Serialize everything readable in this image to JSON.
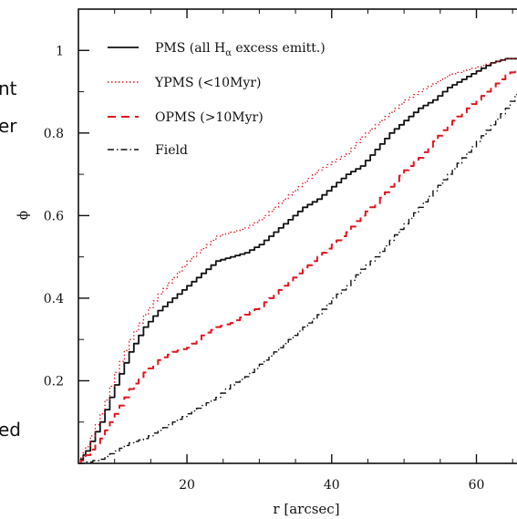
{
  "chart_data": {
    "type": "line",
    "xlabel": "r [arcsec]",
    "ylabel": "ϕ",
    "xlim": [
      5,
      68
    ],
    "ylim": [
      0,
      1.1
    ],
    "x_ticks": [
      20,
      40,
      60
    ],
    "y_ticks": [
      0.2,
      0.4,
      0.6,
      0.8,
      1
    ],
    "x_tick_labels": [
      "20",
      "40",
      "60"
    ],
    "y_tick_labels": [
      "0.2",
      "0.4",
      "0.6",
      "0.8",
      "1"
    ],
    "legend_position": "top-left",
    "grid": false,
    "series": [
      {
        "name": "PMS (all Hα excess emitt.)",
        "legend_label_main": "PMS (all H",
        "legend_label_sub": "α",
        "legend_label_rest": " excess emitt.)",
        "color": "#111111",
        "style": "solid",
        "points": [
          [
            5,
            0
          ],
          [
            6,
            0.03
          ],
          [
            8,
            0.1
          ],
          [
            10,
            0.19
          ],
          [
            12,
            0.27
          ],
          [
            14,
            0.33
          ],
          [
            16,
            0.37
          ],
          [
            18,
            0.4
          ],
          [
            20,
            0.43
          ],
          [
            22,
            0.46
          ],
          [
            24,
            0.49
          ],
          [
            26,
            0.5
          ],
          [
            28,
            0.51
          ],
          [
            30,
            0.53
          ],
          [
            32,
            0.56
          ],
          [
            34,
            0.59
          ],
          [
            36,
            0.62
          ],
          [
            38,
            0.64
          ],
          [
            40,
            0.67
          ],
          [
            42,
            0.7
          ],
          [
            44,
            0.72
          ],
          [
            46,
            0.76
          ],
          [
            48,
            0.8
          ],
          [
            50,
            0.83
          ],
          [
            52,
            0.86
          ],
          [
            54,
            0.88
          ],
          [
            56,
            0.91
          ],
          [
            58,
            0.93
          ],
          [
            60,
            0.95
          ],
          [
            62,
            0.97
          ],
          [
            64,
            0.98
          ],
          [
            66,
            0.98
          ],
          [
            68,
            0.98
          ]
        ]
      },
      {
        "name": "YPMS (<10Myr)",
        "color": "#e0141e",
        "style": "dotted",
        "points": [
          [
            5,
            0
          ],
          [
            6,
            0.04
          ],
          [
            8,
            0.12
          ],
          [
            10,
            0.22
          ],
          [
            12,
            0.3
          ],
          [
            14,
            0.36
          ],
          [
            16,
            0.41
          ],
          [
            18,
            0.45
          ],
          [
            20,
            0.49
          ],
          [
            22,
            0.52
          ],
          [
            24,
            0.55
          ],
          [
            26,
            0.56
          ],
          [
            28,
            0.57
          ],
          [
            30,
            0.59
          ],
          [
            32,
            0.62
          ],
          [
            34,
            0.65
          ],
          [
            36,
            0.68
          ],
          [
            38,
            0.71
          ],
          [
            40,
            0.73
          ],
          [
            42,
            0.75
          ],
          [
            44,
            0.79
          ],
          [
            46,
            0.82
          ],
          [
            48,
            0.85
          ],
          [
            50,
            0.88
          ],
          [
            52,
            0.9
          ],
          [
            54,
            0.92
          ],
          [
            56,
            0.94
          ],
          [
            58,
            0.95
          ],
          [
            60,
            0.96
          ],
          [
            62,
            0.97
          ],
          [
            64,
            0.98
          ],
          [
            66,
            0.98
          ],
          [
            68,
            0.99
          ]
        ]
      },
      {
        "name": "OPMS (>10Myr)",
        "color": "#e0141e",
        "style": "dashed",
        "points": [
          [
            5,
            0
          ],
          [
            6,
            0.02
          ],
          [
            8,
            0.06
          ],
          [
            10,
            0.12
          ],
          [
            12,
            0.18
          ],
          [
            14,
            0.22
          ],
          [
            16,
            0.25
          ],
          [
            18,
            0.27
          ],
          [
            20,
            0.28
          ],
          [
            22,
            0.31
          ],
          [
            24,
            0.33
          ],
          [
            26,
            0.34
          ],
          [
            28,
            0.36
          ],
          [
            30,
            0.38
          ],
          [
            32,
            0.41
          ],
          [
            34,
            0.44
          ],
          [
            36,
            0.47
          ],
          [
            38,
            0.5
          ],
          [
            40,
            0.53
          ],
          [
            42,
            0.56
          ],
          [
            44,
            0.6
          ],
          [
            46,
            0.63
          ],
          [
            48,
            0.67
          ],
          [
            50,
            0.71
          ],
          [
            52,
            0.74
          ],
          [
            54,
            0.78
          ],
          [
            56,
            0.82
          ],
          [
            58,
            0.85
          ],
          [
            60,
            0.88
          ],
          [
            62,
            0.91
          ],
          [
            64,
            0.94
          ],
          [
            66,
            0.96
          ],
          [
            68,
            0.98
          ]
        ]
      },
      {
        "name": "Field",
        "color": "#111111",
        "style": "dashdot",
        "points": [
          [
            5,
            0
          ],
          [
            8,
            0.01
          ],
          [
            10,
            0.03
          ],
          [
            12,
            0.05
          ],
          [
            14,
            0.06
          ],
          [
            16,
            0.08
          ],
          [
            18,
            0.1
          ],
          [
            20,
            0.12
          ],
          [
            22,
            0.14
          ],
          [
            24,
            0.16
          ],
          [
            26,
            0.19
          ],
          [
            28,
            0.21
          ],
          [
            30,
            0.24
          ],
          [
            32,
            0.27
          ],
          [
            34,
            0.3
          ],
          [
            36,
            0.33
          ],
          [
            38,
            0.36
          ],
          [
            40,
            0.4
          ],
          [
            42,
            0.43
          ],
          [
            44,
            0.47
          ],
          [
            46,
            0.5
          ],
          [
            48,
            0.54
          ],
          [
            50,
            0.58
          ],
          [
            52,
            0.62
          ],
          [
            54,
            0.66
          ],
          [
            56,
            0.7
          ],
          [
            58,
            0.74
          ],
          [
            60,
            0.78
          ],
          [
            62,
            0.82
          ],
          [
            64,
            0.86
          ],
          [
            66,
            0.91
          ],
          [
            68,
            0.96
          ]
        ]
      }
    ]
  },
  "side_text": {
    "left": [
      "nt",
      "er",
      "ed"
    ]
  }
}
